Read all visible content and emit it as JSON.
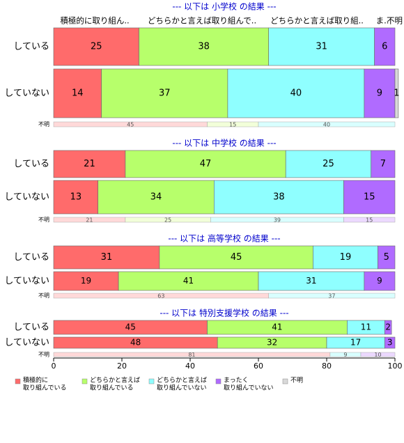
{
  "chart_data": {
    "type": "bar",
    "orientation": "horizontal",
    "stacked": true,
    "xlim": [
      0,
      100
    ],
    "x_ticks": [
      "0",
      "20",
      "40",
      "60",
      "80",
      "100"
    ],
    "column_headers": [
      "積極的に取り組ん..",
      "どちらかと言えば取り組んで..",
      "どちらかと言えば取り組..",
      "ま..",
      "不明"
    ],
    "legend": [
      {
        "line1": "積極的に",
        "line2": "取り組んでいる",
        "color": "#ff6b6b"
      },
      {
        "line1": "どちらかと言えば",
        "line2": "取り組んでいる",
        "color": "#b7ff6b"
      },
      {
        "line1": "どちらかと言えば",
        "line2": "取り組んでいない",
        "color": "#8fffff"
      },
      {
        "line1": "まったく",
        "line2": "取り組んでいない",
        "color": "#b06bff"
      },
      {
        "line1": "不明",
        "line2": "",
        "color": "#d9d9d9"
      }
    ],
    "panels": [
      {
        "title": "--- 以下は 小学校 の結果 ---",
        "rows": [
          {
            "label": "している",
            "values": [
              25,
              38,
              31,
              6,
              0
            ]
          },
          {
            "label": "していない",
            "values": [
              14,
              37,
              40,
              9,
              1
            ]
          }
        ],
        "unknown_row": {
          "label": "不明",
          "values": [
            45,
            15,
            40,
            0,
            0
          ]
        }
      },
      {
        "title": "--- 以下は 中学校 の結果 ---",
        "rows": [
          {
            "label": "している",
            "values": [
              21,
              47,
              25,
              7,
              0
            ]
          },
          {
            "label": "していない",
            "values": [
              13,
              34,
              38,
              15,
              0
            ]
          }
        ],
        "unknown_row": {
          "label": "不明",
          "values": [
            21,
            25,
            39,
            15,
            0
          ]
        }
      },
      {
        "title": "--- 以下は 高等学校 の結果 ---",
        "rows": [
          {
            "label": "している",
            "values": [
              31,
              45,
              19,
              5,
              0
            ]
          },
          {
            "label": "していない",
            "values": [
              19,
              41,
              31,
              9,
              0
            ]
          }
        ],
        "unknown_row": {
          "label": "不明",
          "values": [
            63,
            0,
            37,
            0,
            0
          ]
        }
      },
      {
        "title": "--- 以下は 特別支援学校 の結果 ---",
        "rows": [
          {
            "label": "している",
            "values": [
              45,
              41,
              11,
              2,
              0
            ]
          },
          {
            "label": "していない",
            "values": [
              48,
              32,
              17,
              3,
              0
            ]
          }
        ],
        "unknown_row": {
          "label": "不明",
          "values": [
            81,
            0,
            9,
            10,
            0
          ]
        }
      }
    ]
  }
}
